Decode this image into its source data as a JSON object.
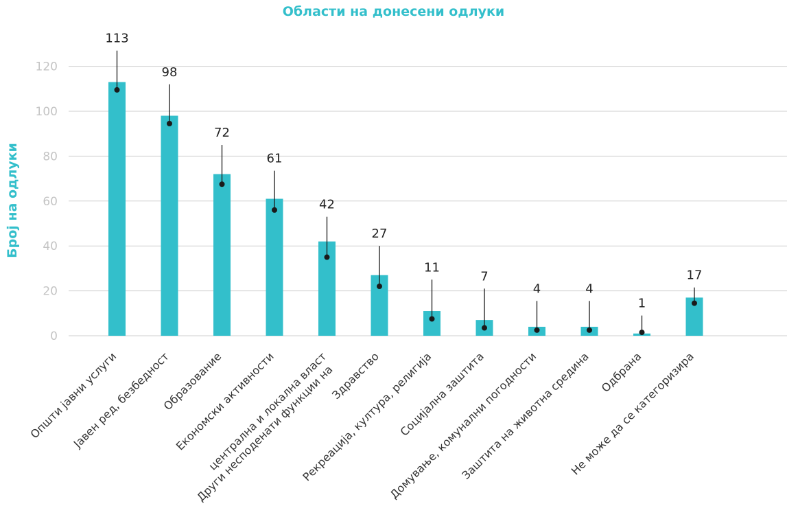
{
  "chart_data": {
    "type": "bar",
    "title": "Области на донесени одлуки",
    "xlabel": "",
    "ylabel": "Број на одлуки",
    "ylim": [
      0,
      120
    ],
    "yticks": [
      0,
      20,
      40,
      60,
      80,
      100,
      120
    ],
    "grid": true,
    "categories": [
      [
        "Општи јавни услуги"
      ],
      [
        "Јавен ред, безбедност"
      ],
      [
        "Образование"
      ],
      [
        "Економски активности"
      ],
      [
        "Други несподенати функции на",
        "централна и локална власт"
      ],
      [
        "Здравство"
      ],
      [
        "Рекреација, култура, религија"
      ],
      [
        "Социјална заштита"
      ],
      [
        "Домување, комунални погодности"
      ],
      [
        "Заштита на животна средина"
      ],
      [
        "Одбрана"
      ],
      [
        "Не може да се категоризира"
      ]
    ],
    "values": [
      113,
      98,
      72,
      61,
      42,
      27,
      11,
      7,
      4,
      4,
      1,
      17
    ],
    "markers": [
      109.5,
      94.5,
      67.5,
      56,
      35,
      22,
      7.5,
      3.5,
      2.5,
      2.5,
      1.5,
      14.5
    ],
    "whisker_top": [
      127,
      112,
      85,
      73.5,
      53,
      40,
      25,
      21,
      15.5,
      15.5,
      9,
      21.5
    ],
    "colors": {
      "bar": "#33bfcb",
      "title": "#33bfcb",
      "ylabel": "#33bfcb",
      "grid": "#cfcfcf",
      "whisker": "#1a1a1a"
    }
  }
}
